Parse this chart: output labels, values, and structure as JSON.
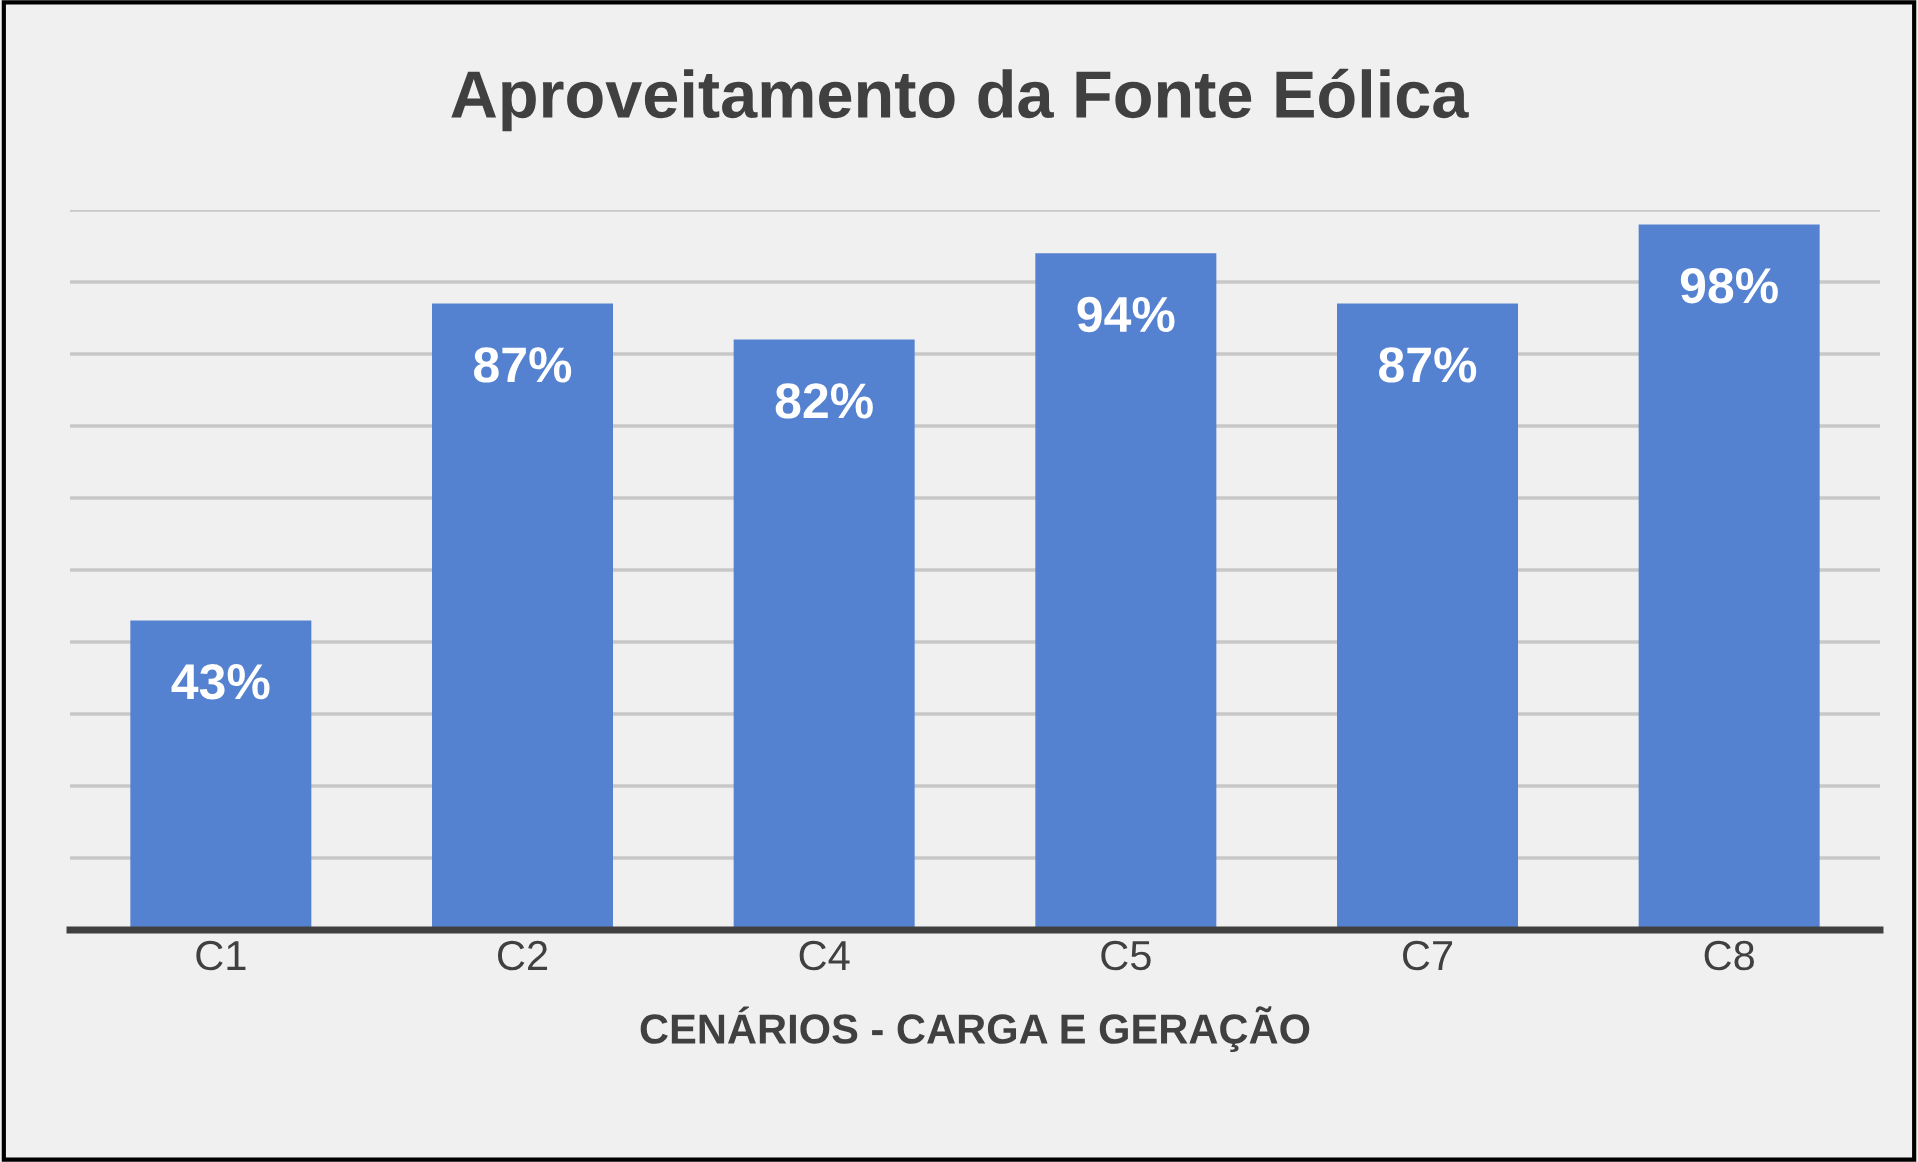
{
  "chart_data": {
    "type": "bar",
    "title": "Aproveitamento da Fonte Eólica",
    "xlabel": "CENÁRIOS - CARGA E GERAÇÃO",
    "categories": [
      "C1",
      "C2",
      "C4",
      "C5",
      "C7",
      "C8"
    ],
    "values": [
      43,
      87,
      82,
      94,
      87,
      98
    ],
    "value_labels": [
      "43%",
      "87%",
      "82%",
      "94%",
      "87%",
      "98%"
    ],
    "color": "#5582d0",
    "ylim": [
      0,
      100
    ],
    "yticks": [
      {
        "value": 0,
        "label": null
      },
      {
        "value": 10,
        "label": null
      },
      {
        "value": 20,
        "label": null
      },
      {
        "value": 30,
        "label": null
      },
      {
        "value": 40,
        "label": null
      },
      {
        "value": 50,
        "label": null
      },
      {
        "value": 60,
        "label": null
      },
      {
        "value": 70,
        "label": null
      },
      {
        "value": 80,
        "label": null
      },
      {
        "value": 90,
        "label": null
      },
      {
        "value": 100,
        "label": null
      }
    ],
    "tick_labels": "x",
    "grid": "y",
    "legend": false
  }
}
